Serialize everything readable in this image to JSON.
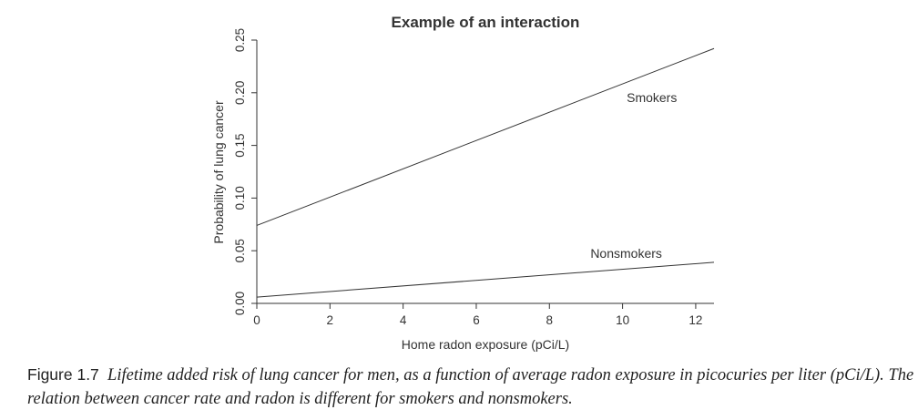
{
  "chart_data": {
    "type": "line",
    "title": "Example of an interaction",
    "xlabel": "Home radon exposure (pCi/L)",
    "ylabel": "Probability of lung cancer",
    "xlim": [
      0,
      12.5
    ],
    "ylim": [
      0,
      0.25
    ],
    "xticks": [
      "0",
      "2",
      "4",
      "6",
      "8",
      "10",
      "12"
    ],
    "yticks": [
      "0.00",
      "0.05",
      "0.10",
      "0.15",
      "0.20",
      "0.25"
    ],
    "grid": false,
    "series": [
      {
        "name": "Smokers",
        "x": [
          0,
          12.5
        ],
        "y": [
          0.074,
          0.242
        ],
        "label_at": [
          10.8,
          0.187
        ]
      },
      {
        "name": "Nonsmokers",
        "x": [
          0,
          12.5
        ],
        "y": [
          0.006,
          0.039
        ],
        "label_at": [
          10.1,
          0.039
        ]
      }
    ]
  },
  "caption": {
    "label": "Figure 1.7",
    "text": "Lifetime added risk of lung cancer for men, as a function of average radon exposure in picocuries per liter (pCi/L). The relation between cancer rate and radon is different for smokers and nonsmokers."
  }
}
